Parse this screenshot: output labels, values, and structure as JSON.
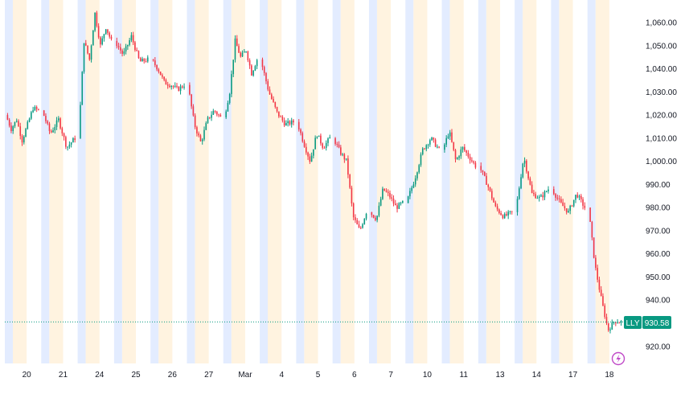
{
  "ticker": {
    "symbol": "LLY",
    "last_price_label": "930.58",
    "up_color": "#089981",
    "down_color": "#f23645",
    "price_line_color": "#089981"
  },
  "session_bands": {
    "premarket_color": "#fff3e0",
    "postmarket_color": "#e3ecff"
  },
  "logo_icon": "lightning-icon",
  "chart_data": {
    "type": "candlestick",
    "ylim": [
      914,
      1070
    ],
    "y_ticks": [
      920,
      930,
      940,
      950,
      960,
      970,
      980,
      990,
      1000,
      1010,
      1020,
      1030,
      1040,
      1050,
      1060
    ],
    "y_tick_labels": [
      "920.00",
      "930.00",
      "940.00",
      "950.00",
      "960.00",
      "970.00",
      "980.00",
      "990.00",
      "1,000.00",
      "1,010.00",
      "1,020.00",
      "1,030.00",
      "1,040.00",
      "1,050.00",
      "1,060.00"
    ],
    "x_tick_labels": [
      "20",
      "21",
      "24",
      "25",
      "26",
      "27",
      "Mar",
      "4",
      "5",
      "6",
      "7",
      "10",
      "11",
      "13",
      "14",
      "17",
      "18"
    ],
    "last_price": 930.58,
    "days": [
      {
        "label": "20",
        "path": [
          1020,
          1014,
          1018,
          1009,
          1016,
          1023,
          1022
        ]
      },
      {
        "label": "21",
        "path": [
          1022,
          1012,
          1018,
          1006,
          1010
        ]
      },
      {
        "label": "24",
        "path": [
          1010,
          1052,
          1044,
          1064,
          1050,
          1058,
          1052
        ]
      },
      {
        "label": "25",
        "path": [
          1052,
          1046,
          1054,
          1043,
          1044
        ]
      },
      {
        "label": "26",
        "path": [
          1044,
          1040,
          1034,
          1033,
          1031,
          1033
        ]
      },
      {
        "label": "27",
        "path": [
          1033,
          1016,
          1008,
          1018,
          1022,
          1019
        ]
      },
      {
        "label": "Mar",
        "path": [
          1019,
          1030,
          1052,
          1045,
          1048,
          1038,
          1044
        ]
      },
      {
        "label": "4",
        "path": [
          1044,
          1030,
          1021,
          1016,
          1017
        ]
      },
      {
        "label": "5",
        "path": [
          1017,
          1008,
          1000,
          1012,
          1006,
          1010
        ]
      },
      {
        "label": "6",
        "path": [
          1010,
          1004,
          1000,
          976,
          970,
          978
        ]
      },
      {
        "label": "7",
        "path": [
          978,
          975,
          988,
          985,
          980,
          982
        ]
      },
      {
        "label": "10",
        "path": [
          982,
          992,
          1005,
          1010,
          1005
        ]
      },
      {
        "label": "11",
        "path": [
          1005,
          1013,
          1000,
          1006,
          1002,
          998
        ]
      },
      {
        "label": "13",
        "path": [
          998,
          990,
          980,
          976,
          978
        ]
      },
      {
        "label": "14",
        "path": [
          978,
          1002,
          986,
          984,
          988
        ]
      },
      {
        "label": "17",
        "path": [
          988,
          982,
          978,
          986,
          980
        ]
      },
      {
        "label": "18",
        "path": [
          980,
          955,
          940,
          927,
          931,
          930.58
        ]
      }
    ]
  }
}
